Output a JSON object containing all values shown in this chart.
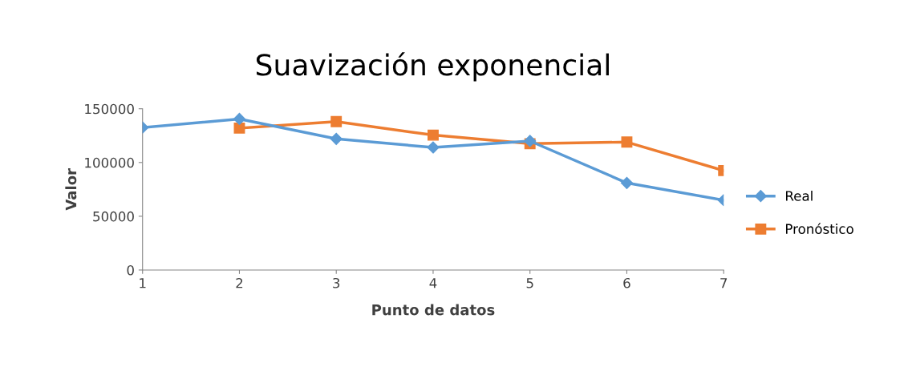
{
  "chart_data": {
    "type": "line",
    "title": "Suavización exponencial",
    "xlabel": "Punto de datos",
    "ylabel": "Valor",
    "x": [
      1,
      2,
      3,
      4,
      5,
      6,
      7
    ],
    "series": [
      {
        "name": "Real",
        "color": "#5b9bd5",
        "marker": "diamond",
        "values": [
          132500,
          140500,
          122000,
          114000,
          120000,
          81000,
          65000
        ]
      },
      {
        "name": "Pronóstico",
        "color": "#ed7d31",
        "marker": "square",
        "values": [
          null,
          132000,
          138000,
          125500,
          117500,
          119000,
          92500
        ]
      }
    ],
    "xlim": [
      1,
      7
    ],
    "xticks": [
      1,
      2,
      3,
      4,
      5,
      6,
      7
    ],
    "ylim": [
      0,
      150000
    ],
    "yticks": [
      0,
      50000,
      100000,
      150000
    ],
    "grid": false,
    "legend": "right"
  }
}
